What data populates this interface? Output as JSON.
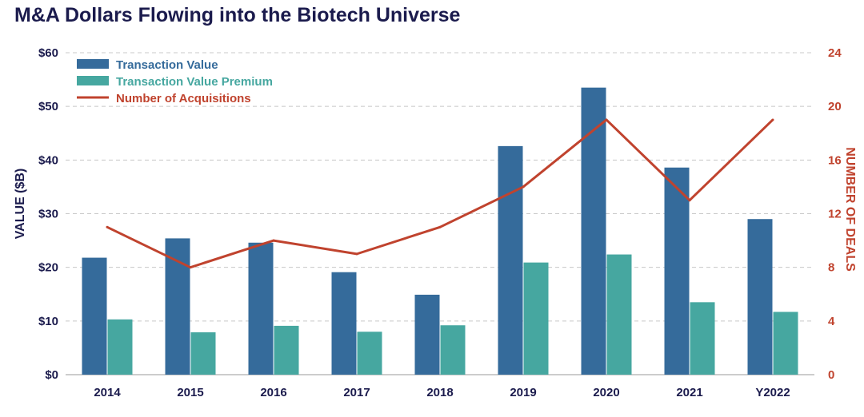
{
  "colors": {
    "title": "#1b1b4d",
    "value_bar": "#356b9b",
    "premium_bar": "#46a7a0",
    "line": "#c0432e",
    "left_axis_text": "#1b1b4d",
    "right_axis_text": "#c0432e",
    "grid": "#c8c8c8"
  },
  "chart_data": {
    "type": "bar",
    "title": "M&A Dollars Flowing into the Biotech Universe",
    "ylabel": "VALUE ($B)",
    "y2label": "NUMBER OF DEALS",
    "xlabel": "",
    "categories": [
      "2014",
      "2015",
      "2016",
      "2017",
      "2018",
      "2019",
      "2020",
      "2021",
      "Y2022"
    ],
    "ylim": [
      0,
      60
    ],
    "y2lim": [
      0,
      24
    ],
    "y_ticks": [
      "$0",
      "$10",
      "$20",
      "$30",
      "$40",
      "$50",
      "$60"
    ],
    "y_tick_values": [
      0,
      10,
      20,
      30,
      40,
      50,
      60
    ],
    "y2_ticks": [
      "0",
      "4",
      "8",
      "12",
      "16",
      "20",
      "24"
    ],
    "y2_tick_values": [
      0,
      4,
      8,
      12,
      16,
      20,
      24
    ],
    "grid": true,
    "legend_position": "top-left",
    "series": [
      {
        "name": "Transaction Value",
        "type": "bar",
        "axis": "left",
        "values": [
          21.8,
          25.4,
          24.6,
          19.1,
          14.9,
          42.6,
          53.5,
          38.6,
          29.0
        ]
      },
      {
        "name": "Transaction Value Premium",
        "type": "bar",
        "axis": "left",
        "values": [
          10.3,
          7.9,
          9.1,
          8.0,
          9.2,
          20.9,
          22.4,
          13.5,
          11.7
        ]
      },
      {
        "name": "Number of Acquisitions",
        "type": "line",
        "axis": "right",
        "values": [
          11,
          8,
          10,
          9,
          11,
          14,
          19,
          13,
          19
        ]
      }
    ]
  }
}
